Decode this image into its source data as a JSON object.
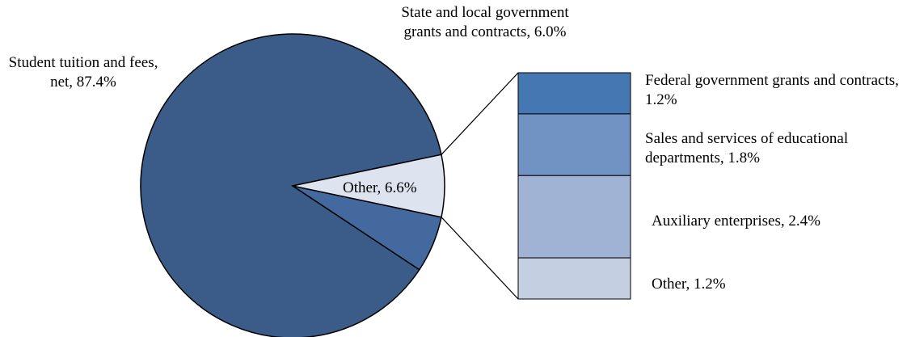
{
  "chart_data": {
    "type": "pie",
    "values": [
      87.4,
      6.0,
      6.6
    ],
    "value_labels": [
      "Student tuition and fees, net, 87.4%",
      "State and local government grants and contracts, 6.0%",
      "Other, 6.6%"
    ],
    "colors": [
      "#3b5c88",
      "#44699e",
      "#dde3ef"
    ],
    "breakdown": {
      "type": "bar",
      "values": [
        1.2,
        1.8,
        2.4,
        1.2
      ],
      "value_labels": [
        "Federal government grants and contracts, 1.2%",
        "Sales and services of educational departments, 1.8%",
        "Auxiliary enterprises, 2.4%",
        "Other, 1.2%"
      ],
      "colors": [
        "#4577b3",
        "#7093c4",
        "#a0b3d4",
        "#c4cfe2"
      ]
    }
  }
}
